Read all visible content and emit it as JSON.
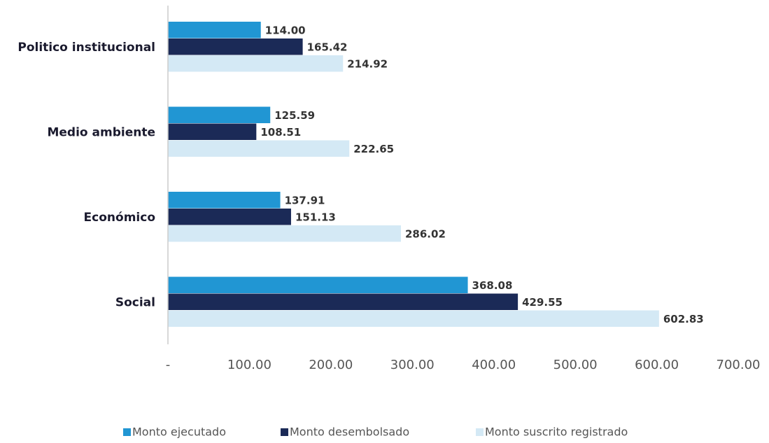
{
  "chart_data": {
    "type": "hbar",
    "categories": [
      "Politico institucional",
      "Medio ambiente",
      "Económico",
      "Social"
    ],
    "series": [
      {
        "name": "Monto ejecutado",
        "color": "#2196d3",
        "values": [
          114.0,
          125.59,
          137.91,
          368.08
        ],
        "value_labels": [
          "114.00",
          "125.59",
          "137.91",
          "368.08"
        ]
      },
      {
        "name": "Monto desembolsado",
        "color": "#1b2a57",
        "values": [
          165.42,
          108.51,
          151.13,
          429.55
        ],
        "value_labels": [
          "165.42",
          "108.51",
          "151.13",
          "429.55"
        ]
      },
      {
        "name": "Monto suscrito registrado",
        "color": "#d4e9f5",
        "values": [
          214.92,
          222.65,
          286.02,
          602.83
        ],
        "value_labels": [
          "214.92",
          "222.65",
          "286.02",
          "602.83"
        ]
      }
    ],
    "xlim": [
      0,
      700
    ],
    "xticks": [
      {
        "value": 0,
        "label": "-"
      },
      {
        "value": 100,
        "label": "100.00"
      },
      {
        "value": 200,
        "label": "200.00"
      },
      {
        "value": 300,
        "label": "300.00"
      },
      {
        "value": 400,
        "label": "400.00"
      },
      {
        "value": 500,
        "label": "500.00"
      },
      {
        "value": 600,
        "label": "600.00"
      },
      {
        "value": 700,
        "label": "700.00"
      }
    ],
    "legend": "bottom"
  }
}
